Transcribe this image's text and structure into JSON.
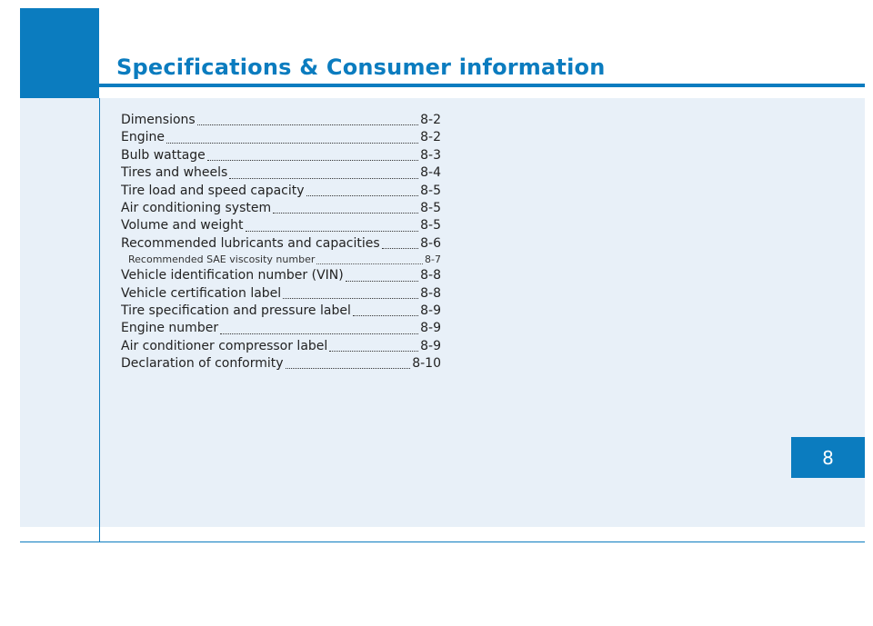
{
  "header": {
    "title": "Specifications & Consumer information"
  },
  "chapter_tab": {
    "number": "8"
  },
  "colors": {
    "accent": "#0b7cbf",
    "content_background": "#e8f0f8"
  },
  "toc": {
    "entries": [
      {
        "label": "Dimensions",
        "page": "8-2"
      },
      {
        "label": "Engine",
        "page": "8-2"
      },
      {
        "label": "Bulb wattage",
        "page": "8-3"
      },
      {
        "label": "Tires and wheels",
        "page": "8-4"
      },
      {
        "label": "Tire load and speed capacity",
        "page": "8-5"
      },
      {
        "label": "Air conditioning system",
        "page": "8-5"
      },
      {
        "label": "Volume and weight",
        "page": "8-5"
      },
      {
        "label": "Recommended lubricants and capacities",
        "page": "8-6"
      },
      {
        "label": "Recommended SAE viscosity number",
        "page": "8-7"
      },
      {
        "label": "Vehicle identification number (VIN)",
        "page": "8-8"
      },
      {
        "label": "Vehicle certification label",
        "page": "8-8"
      },
      {
        "label": "Tire specification and pressure label",
        "page": "8-9"
      },
      {
        "label": "Engine number",
        "page": "8-9"
      },
      {
        "label": "Air conditioner compressor label",
        "page": "8-9"
      },
      {
        "label": "Declaration of conformity",
        "page": "8-10"
      }
    ]
  }
}
